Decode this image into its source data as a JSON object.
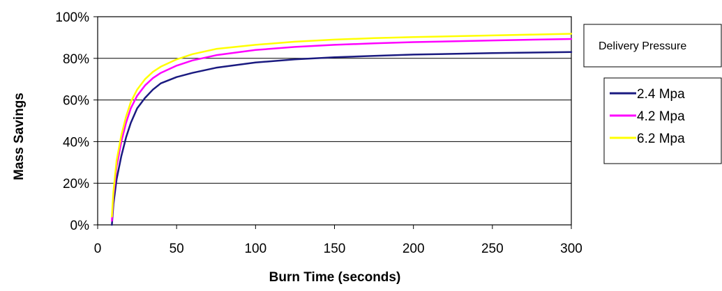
{
  "chart_data": {
    "type": "line",
    "xlabel": "Burn Time (seconds)",
    "ylabel": "Mass Savings",
    "xlim": [
      0,
      300
    ],
    "ylim": [
      0,
      100
    ],
    "x_ticks": [
      0,
      50,
      100,
      150,
      200,
      250,
      300
    ],
    "y_ticks": [
      0,
      20,
      40,
      60,
      80,
      100
    ],
    "x_tick_labels": [
      "0",
      "50",
      "100",
      "150",
      "200",
      "250",
      "300"
    ],
    "y_tick_labels": [
      "0%",
      "20%",
      "40%",
      "60%",
      "80%",
      "100%"
    ],
    "grid": "horizontal",
    "legend_title": "Delivery Pressure",
    "legend_position": "right",
    "series": [
      {
        "name": "2.4 Mpa",
        "color": "#1a1a80",
        "x": [
          9,
          10,
          12,
          15,
          18,
          21,
          25,
          30,
          35,
          40,
          50,
          60,
          75,
          100,
          125,
          150,
          175,
          200,
          250,
          300
        ],
        "y": [
          0,
          10,
          22,
          33,
          42,
          49,
          56,
          61,
          65,
          68,
          71,
          73,
          75.5,
          78,
          79.5,
          80.5,
          81.2,
          81.8,
          82.5,
          83
        ]
      },
      {
        "name": "4.2 Mpa",
        "color": "#ff00ff",
        "x": [
          9,
          10,
          12,
          15,
          18,
          21,
          25,
          30,
          35,
          40,
          50,
          60,
          75,
          100,
          125,
          150,
          175,
          200,
          250,
          300
        ],
        "y": [
          2,
          14,
          28,
          40,
          49,
          56,
          62,
          67,
          70.5,
          73,
          76.5,
          79,
          81.5,
          84,
          85.5,
          86.5,
          87.2,
          87.8,
          88.6,
          89.3
        ]
      },
      {
        "name": "6.2 Mpa",
        "color": "#ffff00",
        "x": [
          9,
          10,
          12,
          15,
          18,
          21,
          25,
          30,
          35,
          40,
          50,
          60,
          75,
          100,
          125,
          150,
          175,
          200,
          250,
          300
        ],
        "y": [
          4,
          16,
          31,
          43,
          52,
          59,
          65,
          70,
          73.5,
          76,
          79.5,
          82,
          84.5,
          86.5,
          88,
          89,
          89.7,
          90.2,
          91,
          91.8
        ]
      }
    ]
  }
}
